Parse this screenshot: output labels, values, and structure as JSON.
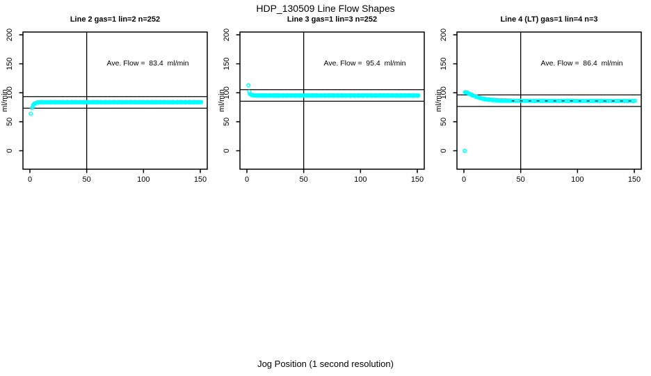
{
  "page": {
    "title": "HDP_130509  Line Flow Shapes",
    "x_axis_label": "Jog Position (1 second resolution)"
  },
  "colors": {
    "points": "#00FFFF",
    "axis": "#000000",
    "background": "#FFFFFF"
  },
  "chart_data": {
    "type": "scatter",
    "title": "HDP_130509  Line Flow Shapes",
    "xlabel": "Jog Position (1 second resolution)",
    "ylabel": "ml/min",
    "x_ticks": [
      0,
      50,
      100,
      150
    ],
    "y_ticks": [
      0,
      50,
      100,
      150,
      200
    ],
    "xlim": [
      -6,
      156
    ],
    "ylim": [
      -32,
      205
    ],
    "vline_x": 50,
    "legend": "none",
    "grid": false,
    "panels": [
      {
        "title": "Line 2 gas=1 lin=2 n=252",
        "annotation": "Ave. Flow =  83.4  ml/min",
        "ave_flow": 83.4,
        "n": 252,
        "hlines": [
          93.4,
          73.4
        ],
        "outliers": [
          [
            0.8,
            64
          ]
        ],
        "profile": [
          [
            1.8,
            73
          ],
          [
            2.4,
            77
          ],
          [
            3,
            79.5
          ],
          [
            4,
            81.5
          ],
          [
            5,
            82.5
          ],
          [
            6.5,
            83.2
          ],
          [
            9,
            83.8
          ],
          [
            151,
            83.8
          ]
        ],
        "point_step": 0.5
      },
      {
        "title": "Line 3 gas=1 lin=3 n=252",
        "annotation": "Ave. Flow =  95.4  ml/min",
        "ave_flow": 95.4,
        "n": 252,
        "hlines": [
          105.4,
          85.4
        ],
        "outliers": [
          [
            1.3,
            113
          ],
          [
            1.9,
            102
          ]
        ],
        "profile": [
          [
            2.5,
            98.5
          ],
          [
            3.5,
            96.8
          ],
          [
            5,
            96
          ],
          [
            8,
            95.5
          ],
          [
            12,
            95.3
          ],
          [
            151,
            95.3
          ]
        ],
        "point_step": 0.5
      },
      {
        "title": "Line 4 (LT) gas=1 lin=4 n=3",
        "annotation": "Ave. Flow =  86.4  ml/min",
        "ave_flow": 86.4,
        "n": 3,
        "hlines": [
          96.4,
          76.4
        ],
        "outliers": [
          [
            0.8,
            0
          ]
        ],
        "profile": [
          [
            0.8,
            101.5
          ],
          [
            1.5,
            101.3
          ],
          [
            3,
            100.3
          ],
          [
            5,
            98.3
          ],
          [
            8,
            95.5
          ],
          [
            12,
            92.5
          ],
          [
            16,
            90.3
          ],
          [
            20,
            88.8
          ],
          [
            26,
            87.6
          ],
          [
            32,
            87
          ],
          [
            40,
            86.6
          ],
          [
            60,
            86.2
          ],
          [
            151,
            86
          ]
        ],
        "point_step": 0.5,
        "sparse_from": 40,
        "sparse_step": 1.3,
        "mean_line_from": 42
      }
    ]
  }
}
